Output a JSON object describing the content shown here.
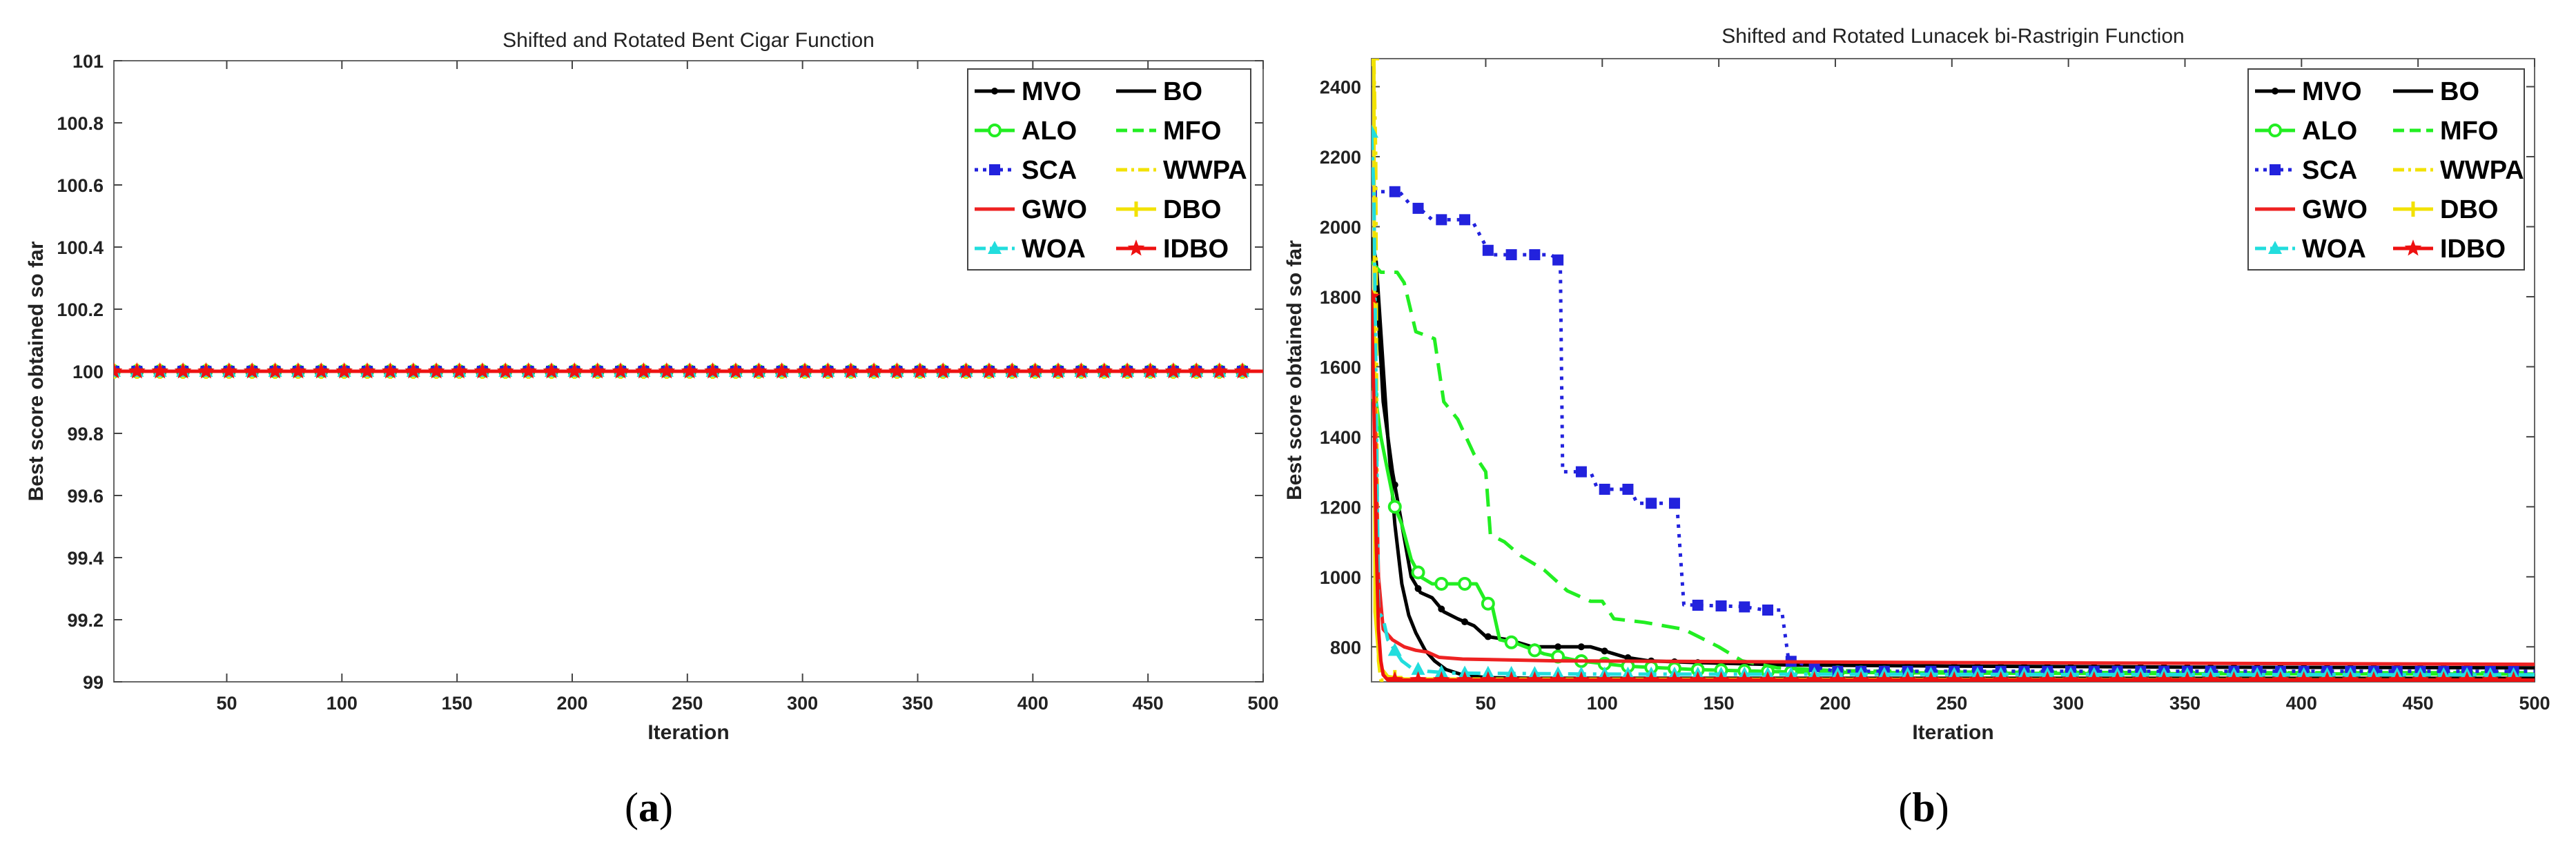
{
  "chart_data": [
    {
      "type": "line",
      "panel_label": "a",
      "title": "Shifted and Rotated Bent Cigar Function",
      "xlabel": "Iteration",
      "ylabel": "Best score obtained so far",
      "xlim": [
        1,
        500
      ],
      "ylim": [
        99,
        101
      ],
      "xticks": [
        50,
        100,
        150,
        200,
        250,
        300,
        350,
        400,
        450,
        500
      ],
      "yticks": [
        99,
        99.2,
        99.4,
        99.6,
        99.8,
        100,
        100.2,
        100.4,
        100.6,
        100.8,
        101
      ],
      "ytick_labels": [
        "99",
        "99.2",
        "99.4",
        "99.6",
        "99.8",
        "100",
        "100.2",
        "100.4",
        "100.6",
        "100.8",
        "101"
      ],
      "legend_position": "top-right",
      "series": [
        {
          "name": "MVO",
          "color": "#000000",
          "dash": "solid",
          "marker": "dot",
          "points": [
            [
              1,
              100
            ],
            [
              500,
              100
            ]
          ]
        },
        {
          "name": "BO",
          "color": "#000000",
          "dash": "solid",
          "marker": "none",
          "points": [
            [
              1,
              100
            ],
            [
              500,
              100
            ]
          ]
        },
        {
          "name": "ALO",
          "color": "#22ee22",
          "dash": "solid",
          "marker": "circle",
          "points": [
            [
              1,
              100
            ],
            [
              500,
              100
            ]
          ]
        },
        {
          "name": "MFO",
          "color": "#22ee22",
          "dash": "dash",
          "marker": "none",
          "points": [
            [
              1,
              100
            ],
            [
              500,
              100
            ]
          ]
        },
        {
          "name": "SCA",
          "color": "#2222dd",
          "dash": "dot",
          "marker": "square",
          "points": [
            [
              1,
              100
            ],
            [
              500,
              100
            ]
          ]
        },
        {
          "name": "WWPA",
          "color": "#f2e200",
          "dash": "dashdot",
          "marker": "none",
          "points": [
            [
              1,
              100
            ],
            [
              500,
              100
            ]
          ]
        },
        {
          "name": "GWO",
          "color": "#ee2222",
          "dash": "solid",
          "marker": "none",
          "points": [
            [
              1,
              100
            ],
            [
              500,
              100
            ]
          ]
        },
        {
          "name": "DBO",
          "color": "#f2e200",
          "dash": "solid",
          "marker": "plus",
          "points": [
            [
              1,
              100
            ],
            [
              500,
              100
            ]
          ]
        },
        {
          "name": "WOA",
          "color": "#22dddd",
          "dash": "dashdot",
          "marker": "triangle",
          "points": [
            [
              1,
              100
            ],
            [
              500,
              100
            ]
          ]
        },
        {
          "name": "IDBO",
          "color": "#ee1111",
          "dash": "solid",
          "marker": "star",
          "points": [
            [
              1,
              100
            ],
            [
              500,
              100
            ]
          ]
        }
      ]
    },
    {
      "type": "line",
      "panel_label": "b",
      "title": "Shifted and Rotated Lunacek bi-Rastrigin Function",
      "xlabel": "Iteration",
      "ylabel": "Best score obtained so far",
      "xlim": [
        1,
        500
      ],
      "ylim": [
        700,
        2480
      ],
      "xticks": [
        50,
        100,
        150,
        200,
        250,
        300,
        350,
        400,
        450,
        500
      ],
      "yticks": [
        800,
        1000,
        1200,
        1400,
        1600,
        1800,
        2000,
        2200,
        2400
      ],
      "ytick_labels": [
        "800",
        "1000",
        "1200",
        "1400",
        "1600",
        "1800",
        "2000",
        "2200",
        "2400"
      ],
      "legend_position": "top-right",
      "series": [
        {
          "name": "MVO",
          "color": "#000000",
          "dash": "solid",
          "marker": "dot",
          "points": [
            [
              1,
              1950
            ],
            [
              3,
              1850
            ],
            [
              6,
              1500
            ],
            [
              10,
              1300
            ],
            [
              14,
              1150
            ],
            [
              18,
              1000
            ],
            [
              22,
              955
            ],
            [
              27,
              940
            ],
            [
              32,
              900
            ],
            [
              38,
              880
            ],
            [
              45,
              860
            ],
            [
              50,
              830
            ],
            [
              60,
              820
            ],
            [
              70,
              800
            ],
            [
              80,
              800
            ],
            [
              95,
              800
            ],
            [
              100,
              790
            ],
            [
              110,
              770
            ],
            [
              120,
              760
            ],
            [
              140,
              755
            ],
            [
              180,
              748
            ],
            [
              250,
              745
            ],
            [
              350,
              742
            ],
            [
              500,
              740
            ]
          ]
        },
        {
          "name": "BO",
          "color": "#000000",
          "dash": "solid",
          "marker": "none",
          "points": [
            [
              1,
              1970
            ],
            [
              3,
              1900
            ],
            [
              5,
              1700
            ],
            [
              8,
              1400
            ],
            [
              11,
              1150
            ],
            [
              14,
              980
            ],
            [
              17,
              890
            ],
            [
              20,
              840
            ],
            [
              24,
              790
            ],
            [
              28,
              760
            ],
            [
              33,
              735
            ],
            [
              40,
              720
            ],
            [
              50,
              712
            ],
            [
              70,
              710
            ],
            [
              150,
              710
            ],
            [
              500,
              710
            ]
          ]
        },
        {
          "name": "ALO",
          "color": "#22ee22",
          "dash": "solid",
          "marker": "circle",
          "points": [
            [
              1,
              1520
            ],
            [
              3,
              1500
            ],
            [
              5,
              1400
            ],
            [
              8,
              1300
            ],
            [
              11,
              1200
            ],
            [
              14,
              1150
            ],
            [
              18,
              1050
            ],
            [
              22,
              1000
            ],
            [
              27,
              980
            ],
            [
              37,
              980
            ],
            [
              46,
              980
            ],
            [
              50,
              930
            ],
            [
              53,
              910
            ],
            [
              56,
              820
            ],
            [
              63,
              810
            ],
            [
              75,
              780
            ],
            [
              90,
              760
            ],
            [
              110,
              745
            ],
            [
              140,
              735
            ],
            [
              180,
              728
            ],
            [
              250,
              725
            ],
            [
              350,
              723
            ],
            [
              500,
              722
            ]
          ]
        },
        {
          "name": "MFO",
          "color": "#22ee22",
          "dash": "dash",
          "marker": "none",
          "points": [
            [
              1,
              1900
            ],
            [
              5,
              1870
            ],
            [
              12,
              1870
            ],
            [
              15,
              1840
            ],
            [
              20,
              1700
            ],
            [
              28,
              1680
            ],
            [
              32,
              1500
            ],
            [
              38,
              1450
            ],
            [
              45,
              1350
            ],
            [
              50,
              1300
            ],
            [
              52,
              1120
            ],
            [
              58,
              1100
            ],
            [
              65,
              1060
            ],
            [
              75,
              1020
            ],
            [
              85,
              960
            ],
            [
              95,
              930
            ],
            [
              100,
              930
            ],
            [
              105,
              880
            ],
            [
              118,
              870
            ],
            [
              135,
              850
            ],
            [
              150,
              800
            ],
            [
              160,
              760
            ],
            [
              175,
              740
            ],
            [
              200,
              732
            ],
            [
              250,
              728
            ],
            [
              350,
              726
            ],
            [
              500,
              726
            ]
          ]
        },
        {
          "name": "SCA",
          "color": "#2222dd",
          "dash": "dot",
          "marker": "square",
          "points": [
            [
              1,
              2100
            ],
            [
              13,
              2100
            ],
            [
              18,
              2060
            ],
            [
              22,
              2050
            ],
            [
              27,
              2020
            ],
            [
              44,
              2020
            ],
            [
              52,
              1920
            ],
            [
              78,
              1920
            ],
            [
              82,
              1900
            ],
            [
              83,
              1300
            ],
            [
              95,
              1300
            ],
            [
              98,
              1250
            ],
            [
              112,
              1250
            ],
            [
              115,
              1210
            ],
            [
              132,
              1210
            ],
            [
              135,
              920
            ],
            [
              160,
              915
            ],
            [
              170,
              905
            ],
            [
              177,
              905
            ],
            [
              180,
              760
            ],
            [
              200,
              730
            ],
            [
              300,
              730
            ],
            [
              500,
              730
            ]
          ]
        },
        {
          "name": "WWPA",
          "color": "#f2e200",
          "dash": "dashdot",
          "marker": "none",
          "points": [
            [
              1,
              2480
            ],
            [
              2,
              2480
            ],
            [
              2.8,
              2200
            ],
            [
              3.3,
              1400
            ],
            [
              4,
              760
            ],
            [
              5,
              705
            ],
            [
              500,
              705
            ]
          ]
        },
        {
          "name": "GWO",
          "color": "#ee2222",
          "dash": "solid",
          "marker": "none",
          "points": [
            [
              1,
              1800
            ],
            [
              2,
              1700
            ],
            [
              3,
              1300
            ],
            [
              4,
              1000
            ],
            [
              6,
              850
            ],
            [
              10,
              820
            ],
            [
              15,
              800
            ],
            [
              20,
              790
            ],
            [
              25,
              785
            ],
            [
              30,
              770
            ],
            [
              40,
              765
            ],
            [
              80,
              760
            ],
            [
              150,
              758
            ],
            [
              250,
              755
            ],
            [
              500,
              750
            ]
          ]
        },
        {
          "name": "DBO",
          "color": "#f2e200",
          "dash": "solid",
          "marker": "plus",
          "points": [
            [
              1,
              2480
            ],
            [
              2,
              2480
            ],
            [
              2.5,
              900
            ],
            [
              3,
              860
            ],
            [
              4,
              780
            ],
            [
              5,
              740
            ],
            [
              8,
              715
            ],
            [
              15,
              708
            ],
            [
              500,
              705
            ]
          ]
        },
        {
          "name": "WOA",
          "color": "#22dddd",
          "dash": "dashdot",
          "marker": "triangle",
          "points": [
            [
              1,
              2270
            ],
            [
              2,
              2100
            ],
            [
              3,
              1500
            ],
            [
              4,
              900
            ],
            [
              6,
              880
            ],
            [
              8,
              820
            ],
            [
              10,
              800
            ],
            [
              14,
              760
            ],
            [
              18,
              740
            ],
            [
              25,
              730
            ],
            [
              35,
              725
            ],
            [
              100,
              722
            ],
            [
              500,
              720
            ]
          ]
        },
        {
          "name": "IDBO",
          "color": "#ee1111",
          "dash": "solid",
          "marker": "star",
          "points": [
            [
              1,
              1800
            ],
            [
              2,
              1500
            ],
            [
              3,
              1100
            ],
            [
              4,
              850
            ],
            [
              5,
              760
            ],
            [
              6,
              720
            ],
            [
              8,
              705
            ],
            [
              500,
              705
            ]
          ]
        }
      ]
    }
  ]
}
